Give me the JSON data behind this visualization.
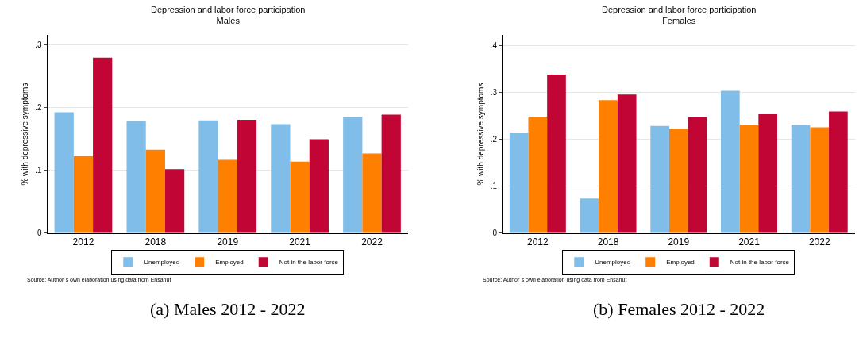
{
  "chart_data": [
    {
      "type": "bar",
      "title": "Depression and labor force participation",
      "subtitle": "Males",
      "ylabel": "% with depressive symptoms",
      "categories": [
        "2012",
        "2018",
        "2019",
        "2021",
        "2022"
      ],
      "series": [
        {
          "name": "Unemployed",
          "color": "#80bde8",
          "values": [
            0.193,
            0.179,
            0.18,
            0.174,
            0.186
          ]
        },
        {
          "name": "Employed",
          "color": "#ff7f00",
          "values": [
            0.123,
            0.133,
            0.117,
            0.114,
            0.127
          ]
        },
        {
          "name": "Not in the labor force",
          "color": "#c10534",
          "values": [
            0.28,
            0.102,
            0.181,
            0.15,
            0.189
          ]
        }
      ],
      "ylim": [
        0,
        0.316
      ],
      "yticks": [
        0,
        {
          "value": 0.1,
          "label": ".1"
        },
        {
          "value": 0.2,
          "label": ".2"
        },
        {
          "value": 0.3,
          "label": ".3"
        }
      ],
      "grid": "y",
      "legend": "bottom",
      "annotations": [
        "Source: Author´s own elaboration using data from Ensanut",
        "(a) Males 2012 - 2022"
      ]
    },
    {
      "type": "bar",
      "title": "Depression and labor force participation",
      "subtitle": "Females",
      "ylabel": "% with depressive symptoms",
      "categories": [
        "2012",
        "2018",
        "2019",
        "2021",
        "2022"
      ],
      "series": [
        {
          "name": "Unemployed",
          "color": "#80bde8",
          "values": [
            0.215,
            0.074,
            0.229,
            0.304,
            0.232
          ]
        },
        {
          "name": "Employed",
          "color": "#ff7f00",
          "values": [
            0.249,
            0.284,
            0.223,
            0.232,
            0.226
          ]
        },
        {
          "name": "Not in the labor force",
          "color": "#c10534",
          "values": [
            0.339,
            0.296,
            0.248,
            0.254,
            0.26
          ]
        }
      ],
      "ylim": [
        0,
        0.423
      ],
      "yticks": [
        0,
        {
          "value": 0.1,
          "label": ".1"
        },
        {
          "value": 0.2,
          "label": ".2"
        },
        {
          "value": 0.3,
          "label": ".3"
        },
        {
          "value": 0.4,
          "label": ".4"
        }
      ],
      "grid": "y",
      "legend": "bottom",
      "annotations": [
        "Source: Author´s own elaboration using data from Ensanut",
        "(b) Females 2012 - 2022"
      ]
    }
  ]
}
